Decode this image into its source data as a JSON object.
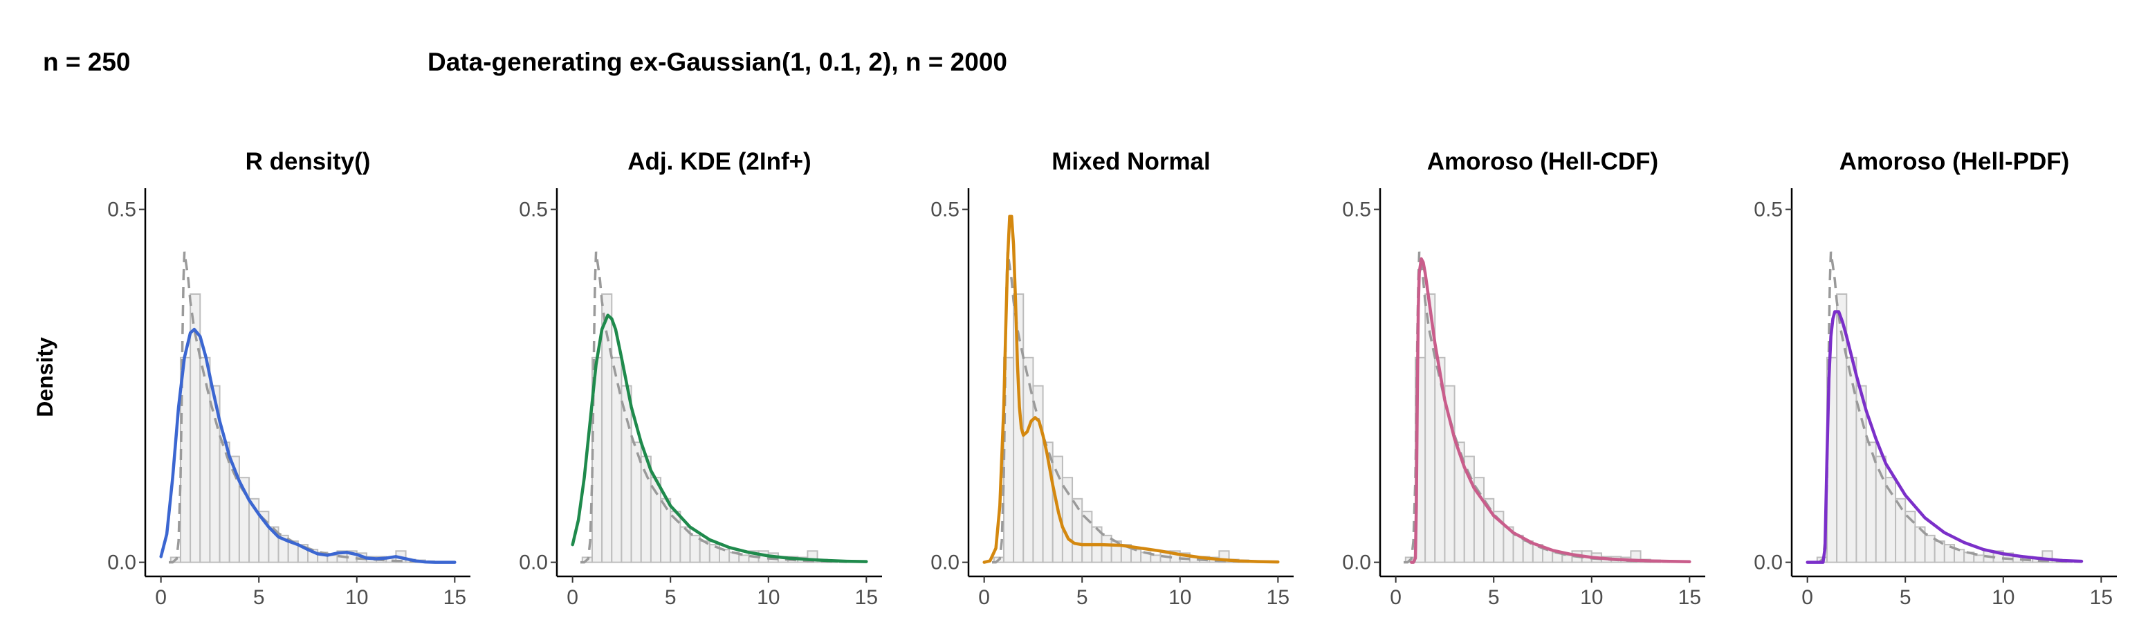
{
  "header": {
    "left": "n = 250",
    "main": "Data-generating ex-Gaussian(1, 0.1, 2), n = 2000"
  },
  "ylabel": "Density",
  "chart_data": {
    "type": "histogram-density-panels",
    "xlim": [
      -0.8,
      15.8
    ],
    "ylim": [
      -0.02,
      0.53
    ],
    "x_ticks": [
      "0",
      "5",
      "10",
      "15"
    ],
    "y_ticks": [
      "0.0",
      "0.5"
    ],
    "x_tick_values": [
      0,
      5,
      10,
      15
    ],
    "y_tick_values": [
      0,
      0.5
    ],
    "histogram": {
      "bin_width": 0.5,
      "bins": [
        {
          "x0": 0.5,
          "h": 0.007
        },
        {
          "x0": 1.0,
          "h": 0.29
        },
        {
          "x0": 1.5,
          "h": 0.38
        },
        {
          "x0": 2.0,
          "h": 0.29
        },
        {
          "x0": 2.5,
          "h": 0.25
        },
        {
          "x0": 3.0,
          "h": 0.17
        },
        {
          "x0": 3.5,
          "h": 0.15
        },
        {
          "x0": 4.0,
          "h": 0.12
        },
        {
          "x0": 4.5,
          "h": 0.09
        },
        {
          "x0": 5.0,
          "h": 0.072
        },
        {
          "x0": 5.5,
          "h": 0.05
        },
        {
          "x0": 6.0,
          "h": 0.038
        },
        {
          "x0": 6.5,
          "h": 0.03
        },
        {
          "x0": 7.0,
          "h": 0.025
        },
        {
          "x0": 7.5,
          "h": 0.018
        },
        {
          "x0": 8.0,
          "h": 0.014
        },
        {
          "x0": 8.5,
          "h": 0.01
        },
        {
          "x0": 9.0,
          "h": 0.016
        },
        {
          "x0": 9.5,
          "h": 0.016
        },
        {
          "x0": 10.0,
          "h": 0.013
        },
        {
          "x0": 10.5,
          "h": 0.008
        },
        {
          "x0": 11.0,
          "h": 0.008
        },
        {
          "x0": 11.5,
          "h": 0.007
        },
        {
          "x0": 12.0,
          "h": 0.016
        },
        {
          "x0": 12.5,
          "h": 0.004
        },
        {
          "x0": 13.0,
          "h": 0.003
        }
      ]
    },
    "truth_density": {
      "x": [
        0.4,
        0.6,
        0.8,
        0.9,
        1.0,
        1.05,
        1.1,
        1.15,
        1.2,
        1.25,
        1.3,
        1.4,
        1.5,
        1.7,
        2.0,
        2.5,
        3.0,
        3.5,
        4.0,
        5.0,
        6.0,
        7.0,
        8.0,
        9.0,
        10.0,
        12.0,
        14.0
      ],
      "y": [
        0.0,
        0.0,
        0.005,
        0.03,
        0.12,
        0.21,
        0.32,
        0.4,
        0.44,
        0.43,
        0.42,
        0.4,
        0.37,
        0.33,
        0.29,
        0.23,
        0.18,
        0.14,
        0.11,
        0.068,
        0.041,
        0.025,
        0.015,
        0.009,
        0.0055,
        0.002,
        0.0007
      ]
    },
    "panels": [
      {
        "title": "R density()",
        "color": "#3b66d1",
        "x": [
          0,
          0.3,
          0.6,
          0.9,
          1.2,
          1.5,
          1.7,
          2.0,
          2.3,
          2.6,
          3.0,
          3.5,
          4.0,
          4.5,
          5.0,
          5.5,
          6.0,
          6.5,
          7.0,
          7.5,
          8.0,
          8.5,
          9.0,
          9.5,
          10.0,
          10.5,
          11.0,
          11.5,
          12.0,
          12.5,
          13.0,
          13.5,
          14.0,
          15.0
        ],
        "y": [
          0.008,
          0.04,
          0.12,
          0.22,
          0.29,
          0.325,
          0.33,
          0.32,
          0.29,
          0.25,
          0.2,
          0.15,
          0.115,
          0.088,
          0.068,
          0.05,
          0.036,
          0.03,
          0.025,
          0.018,
          0.012,
          0.01,
          0.013,
          0.014,
          0.011,
          0.006,
          0.005,
          0.006,
          0.008,
          0.005,
          0.002,
          0.0005,
          0.0,
          0.0
        ]
      },
      {
        "title": "Adj. KDE (2Inf+)",
        "color": "#1f8a4c",
        "x": [
          0,
          0.3,
          0.6,
          0.9,
          1.2,
          1.5,
          1.8,
          2.0,
          2.2,
          2.5,
          3.0,
          3.5,
          4.0,
          5.0,
          6.0,
          7.0,
          8.0,
          9.0,
          10.0,
          11.0,
          12.0,
          13.0,
          14.0,
          15.0
        ],
        "y": [
          0.025,
          0.06,
          0.12,
          0.2,
          0.28,
          0.33,
          0.35,
          0.345,
          0.33,
          0.29,
          0.22,
          0.17,
          0.13,
          0.08,
          0.05,
          0.032,
          0.021,
          0.014,
          0.009,
          0.006,
          0.004,
          0.0025,
          0.0015,
          0.001
        ]
      },
      {
        "title": "Mixed Normal",
        "color": "#d4880f",
        "x": [
          0,
          0.3,
          0.6,
          0.8,
          1.0,
          1.1,
          1.2,
          1.3,
          1.4,
          1.5,
          1.6,
          1.7,
          1.8,
          1.9,
          2.0,
          2.2,
          2.4,
          2.6,
          2.8,
          3.0,
          3.2,
          3.5,
          3.8,
          4.0,
          4.3,
          4.6,
          5.0,
          6.0,
          7.0,
          8.0,
          9.0,
          10.0,
          11.0,
          12.0,
          13.0,
          14.0,
          15.0
        ],
        "y": [
          0.0,
          0.002,
          0.02,
          0.08,
          0.22,
          0.33,
          0.43,
          0.49,
          0.49,
          0.45,
          0.37,
          0.28,
          0.22,
          0.19,
          0.18,
          0.185,
          0.2,
          0.205,
          0.2,
          0.18,
          0.155,
          0.11,
          0.07,
          0.05,
          0.033,
          0.027,
          0.025,
          0.025,
          0.024,
          0.02,
          0.016,
          0.011,
          0.007,
          0.004,
          0.002,
          0.001,
          0.0005
        ]
      },
      {
        "title": "Amoroso (Hell-CDF)",
        "color": "#c95d8b",
        "x": [
          0.8,
          0.9,
          1.0,
          1.05,
          1.1,
          1.15,
          1.2,
          1.3,
          1.4,
          1.5,
          1.7,
          2.0,
          2.5,
          3.0,
          3.5,
          4.0,
          5.0,
          6.0,
          7.0,
          8.0,
          9.0,
          10.0,
          11.0,
          12.0,
          13.0,
          14.0,
          15.0
        ],
        "y": [
          0.0,
          0.0,
          0.006,
          0.08,
          0.24,
          0.36,
          0.41,
          0.43,
          0.425,
          0.41,
          0.37,
          0.31,
          0.23,
          0.175,
          0.135,
          0.105,
          0.066,
          0.042,
          0.027,
          0.017,
          0.011,
          0.007,
          0.0045,
          0.003,
          0.002,
          0.0013,
          0.0008
        ]
      },
      {
        "title": "Amoroso (Hell-PDF)",
        "color": "#7b2fc9",
        "x": [
          0,
          0.5,
          0.8,
          0.9,
          1.0,
          1.1,
          1.2,
          1.3,
          1.4,
          1.6,
          1.8,
          2.0,
          2.5,
          3.0,
          3.5,
          4.0,
          5.0,
          6.0,
          7.0,
          8.0,
          9.0,
          10.0,
          11.0,
          12.0,
          13.0,
          14.0
        ],
        "y": [
          0.0,
          0.0,
          0.0,
          0.02,
          0.15,
          0.26,
          0.32,
          0.345,
          0.355,
          0.355,
          0.34,
          0.32,
          0.265,
          0.215,
          0.175,
          0.14,
          0.095,
          0.063,
          0.042,
          0.028,
          0.018,
          0.012,
          0.008,
          0.005,
          0.0025,
          0.0015
        ]
      }
    ]
  }
}
